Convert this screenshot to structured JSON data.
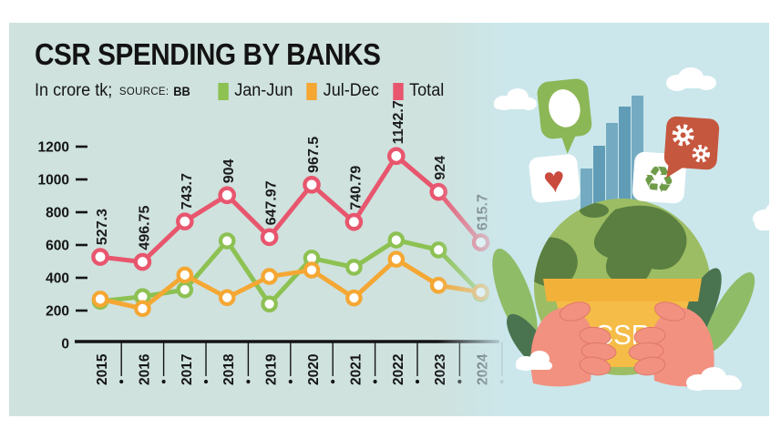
{
  "title": "CSR SPENDING BY BANKS",
  "subtitle": {
    "unit_label": "In crore tk;",
    "source_label": "SOURCE:",
    "source_value": "BB"
  },
  "legend": [
    {
      "label": "Jan-Jun",
      "color": "#8dc152"
    },
    {
      "label": "Jul-Dec",
      "color": "#f5a733"
    },
    {
      "label": "Total",
      "color": "#e8566e"
    }
  ],
  "chart_data": {
    "type": "line",
    "title": "CSR SPENDING BY BANKS",
    "unit": "crore tk",
    "source": "BB",
    "x": [
      "2015",
      "2016",
      "2017",
      "2018",
      "2019",
      "2020",
      "2021",
      "2022",
      "2023",
      "2024"
    ],
    "series": [
      {
        "name": "Jan-Jun",
        "color": "#8dc152",
        "values": [
          257,
          285,
          327,
          625,
          240,
          520,
          464,
          630,
          570,
          304
        ]
      },
      {
        "name": "Jul-Dec",
        "color": "#f5a733",
        "values": [
          270,
          212,
          417,
          279,
          408,
          447,
          277,
          513,
          354,
          312
        ]
      },
      {
        "name": "Total",
        "color": "#e8566e",
        "values": [
          527.3,
          496.75,
          743.7,
          904,
          647.97,
          967.5,
          740.79,
          1142.7,
          924,
          615.7
        ]
      }
    ],
    "total_labels": [
      "527.3",
      "496.75",
      "743.7",
      "904",
      "647.97",
      "967.5",
      "740.79",
      "1142.7",
      "924",
      "615.7"
    ],
    "ylim": [
      0,
      1200
    ],
    "yticks": [
      0,
      200,
      400,
      600,
      800,
      1000,
      1200
    ],
    "grid": false,
    "legend_position": "top"
  },
  "illustration": {
    "pot_label": "CSR",
    "icons": [
      "speech-bubble",
      "bar-chart",
      "gears",
      "heart",
      "recycle"
    ],
    "colors": {
      "sky": "#cbe7ec",
      "globe": "#9cbd63",
      "continent": "#5b7f41",
      "pot": "#f4b942",
      "hands": "#f29180",
      "bubble_green": "#8cb756",
      "bubble_red": "#c6573f",
      "bars": "#6fa9c4",
      "leaf_light": "#8fbc66",
      "leaf_dark": "#4a7450"
    }
  },
  "panel_background": "#cfe2de",
  "text_color": "#141414"
}
